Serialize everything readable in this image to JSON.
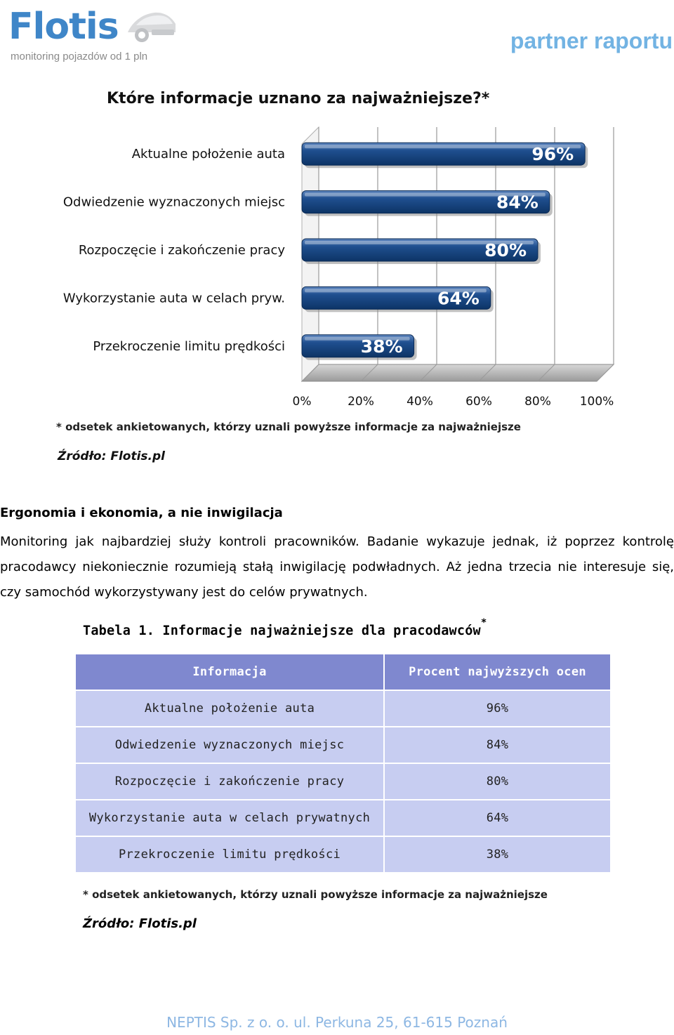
{
  "header": {
    "logo_text": "Flotis",
    "logo_tagline": "monitoring pojazdów od 1 pln",
    "partner_label": "partner raportu"
  },
  "chart_data": {
    "type": "bar",
    "orientation": "horizontal",
    "title": "Które informacje uznano za najważniejsze?*",
    "categories": [
      "Aktualne położenie auta",
      "Odwiedzenie wyznaczonych miejsc",
      "Rozpoczęcie i zakończenie pracy",
      "Wykorzystanie auta w celach pryw.",
      "Przekroczenie limitu prędkości"
    ],
    "values": [
      96,
      84,
      80,
      64,
      38
    ],
    "value_labels": [
      "96%",
      "84%",
      "80%",
      "64%",
      "38%"
    ],
    "x_ticks": [
      "0%",
      "20%",
      "40%",
      "60%",
      "80%",
      "100%"
    ],
    "xlim": [
      0,
      100
    ],
    "grid": true,
    "bar_color": "#1f4f8f",
    "footnote": "* odsetek ankietowanych, którzy uznali powyższe informacje za najważniejsze",
    "source": "Źródło: Flotis.pl"
  },
  "article": {
    "heading": "Ergonomia i ekonomia, a nie inwigilacja",
    "paragraph": "Monitoring jak najbardziej służy kontroli pracowników. Badanie wykazuje jednak, iż poprzez kontrolę pracodawcy niekoniecznie rozumieją stałą inwigilację podwładnych. Aż jedna trzecia nie interesuje się, czy samochód wykorzystywany jest do celów prywatnych."
  },
  "table": {
    "caption": "Tabela 1. Informacje najważniejsze dla pracodawców",
    "caption_mark": "*",
    "headers": [
      "Informacja",
      "Procent najwyższych ocen"
    ],
    "rows": [
      [
        "Aktualne położenie auta",
        "96%"
      ],
      [
        "Odwiedzenie wyznaczonych miejsc",
        "84%"
      ],
      [
        "Rozpoczęcie i zakończenie pracy",
        "80%"
      ],
      [
        "Wykorzystanie auta w celach prywatnych",
        "64%"
      ],
      [
        "Przekroczenie limitu prędkości",
        "38%"
      ]
    ],
    "footnote": "* odsetek ankietowanych, którzy uznali powyższe informacje za najważniejsze",
    "source": "Źródło: Flotis.pl"
  },
  "footer": {
    "text": "NEPTIS Sp. z o. o. ul. Perkuna 25, 61-615 Poznań"
  }
}
